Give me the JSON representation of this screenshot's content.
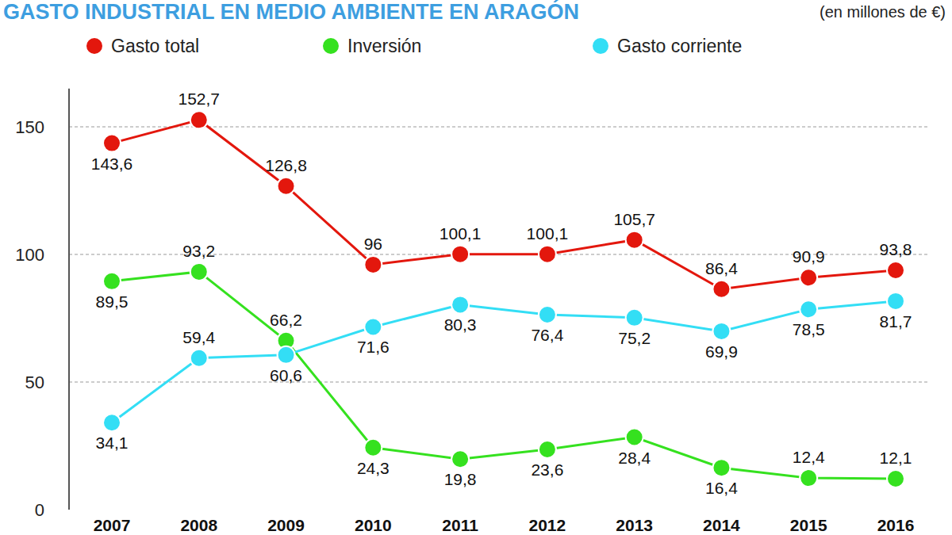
{
  "chart_data": {
    "type": "line",
    "title": "GASTO INDUSTRIAL EN MEDIO AMBIENTE EN ARAGÓN",
    "subtitle": "(en millones de €)",
    "categories": [
      "2007",
      "2008",
      "2009",
      "2010",
      "2011",
      "2012",
      "2013",
      "2014",
      "2015",
      "2016"
    ],
    "series": [
      {
        "name": "Gasto total",
        "color": "#e3170d",
        "values": [
          143.6,
          152.7,
          126.8,
          96,
          100.1,
          100.1,
          105.7,
          86.4,
          90.9,
          93.8
        ],
        "value_labels": [
          "143,6",
          "152,7",
          "126,8",
          "96",
          "100,1",
          "100,1",
          "105,7",
          "86,4",
          "90,9",
          "93,8"
        ]
      },
      {
        "name": "Inversión",
        "color": "#35e11f",
        "values": [
          89.5,
          93.2,
          66.2,
          24.3,
          19.8,
          23.6,
          28.4,
          16.4,
          12.4,
          12.1
        ],
        "value_labels": [
          "89,5",
          "93,2",
          "66,2",
          "24,3",
          "19,8",
          "23,6",
          "28,4",
          "16,4",
          "12,4",
          "12,1"
        ]
      },
      {
        "name": "Gasto corriente",
        "color": "#33def5",
        "values": [
          34.1,
          59.4,
          60.6,
          71.6,
          80.3,
          76.4,
          75.2,
          69.9,
          78.5,
          81.7
        ],
        "value_labels": [
          "34,1",
          "59,4",
          "60,6",
          "71,6",
          "80,3",
          "76,4",
          "75,2",
          "69,9",
          "78,5",
          "81,7"
        ]
      }
    ],
    "ylim": [
      0,
      165
    ],
    "yticks": [
      0,
      50,
      100,
      150
    ],
    "grid": true,
    "legend": "top",
    "marker": "circle",
    "data_labels": true
  }
}
